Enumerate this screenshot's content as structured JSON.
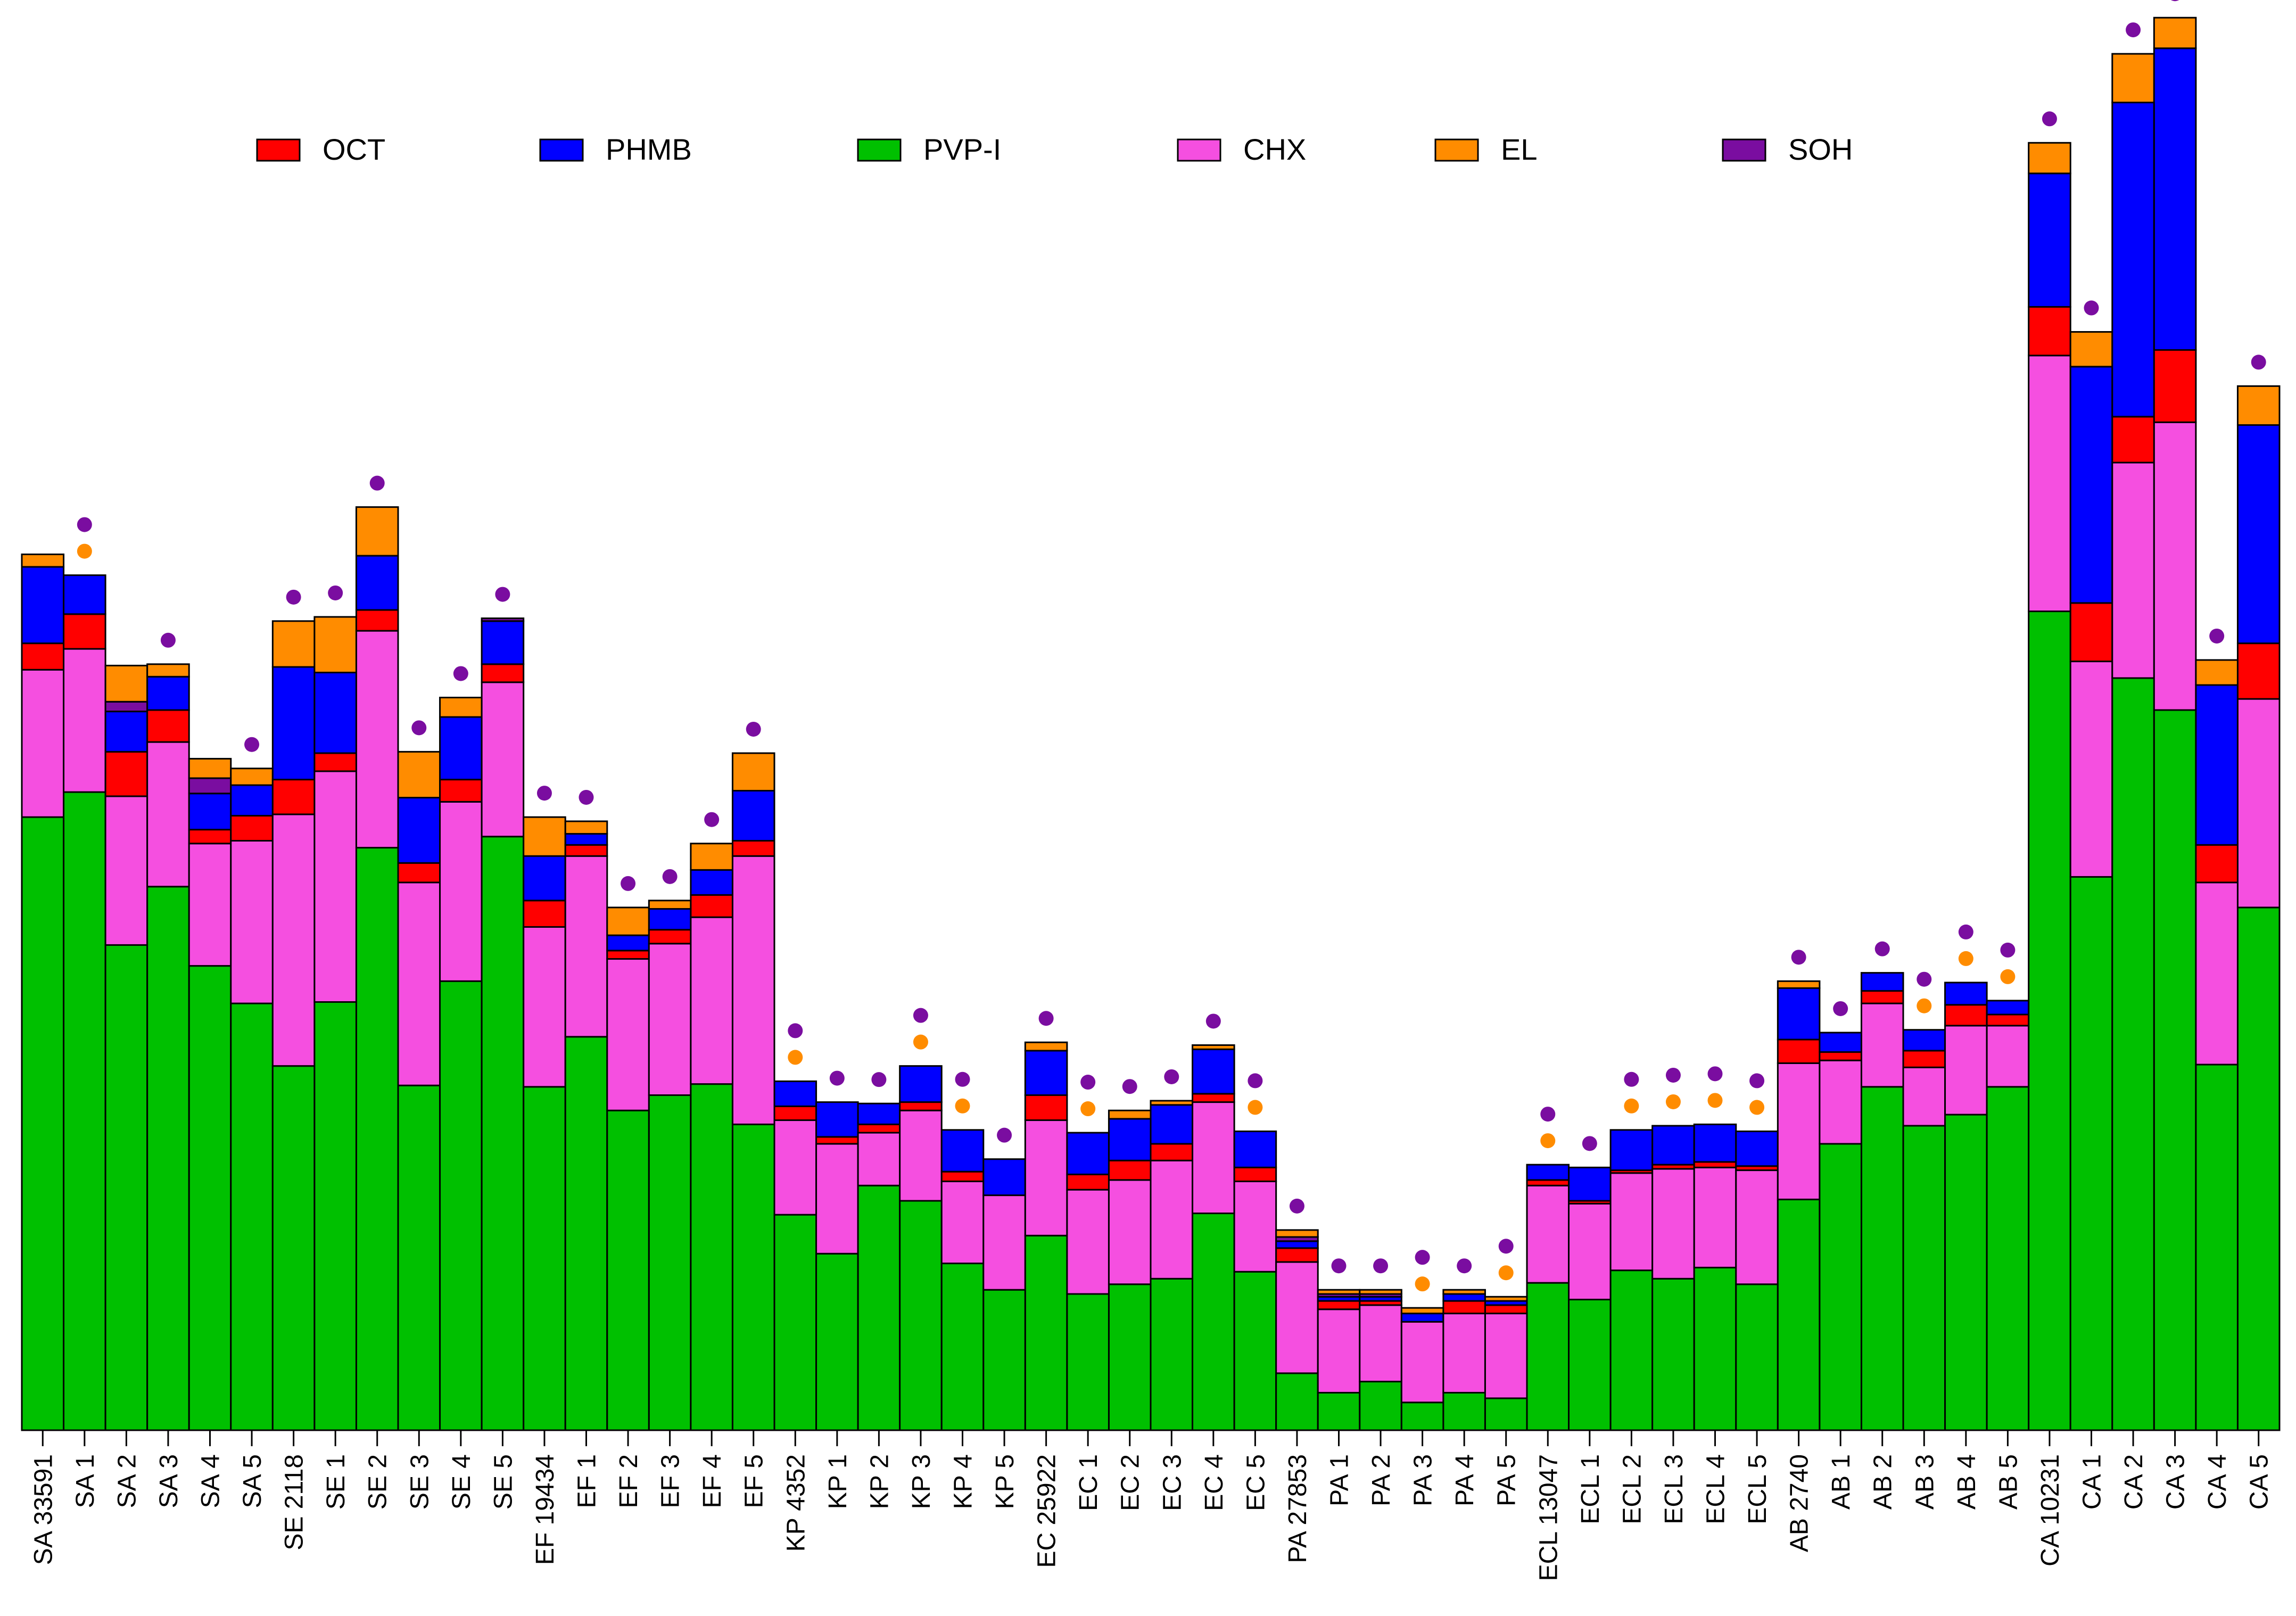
{
  "chart_data": {
    "type": "bar",
    "stacked": true,
    "title": "",
    "xlabel": "",
    "ylabel": "",
    "ylim": [
      0,
      1000
    ],
    "grid": false,
    "legend_position": "top",
    "legend": [
      {
        "key": "OCT",
        "label": "OCT",
        "color": "#ff0000"
      },
      {
        "key": "PHMB",
        "label": "PHMB",
        "color": "#0000ff"
      },
      {
        "key": "PVP-I",
        "label": "PVP-I",
        "color": "#00c000"
      },
      {
        "key": "CHX",
        "label": "CHX",
        "color": "#f54fe0"
      },
      {
        "key": "EL",
        "label": "EL",
        "color": "#ff8c00"
      },
      {
        "key": "SOH",
        "label": "SOH",
        "color": "#7a0da0"
      }
    ],
    "stack_order": [
      "PVP-I",
      "CHX",
      "OCT",
      "PHMB",
      "SOH",
      "EL"
    ],
    "marker_colors": {
      "purple": "#7a0da0",
      "orange": "#ff8c00"
    },
    "categories": [
      "SA 33591",
      "SA 1",
      "SA 2",
      "SA 3",
      "SA 4",
      "SA 5",
      "SE 2118",
      "SE 1",
      "SE 2",
      "SE 3",
      "SE 4",
      "SE 5",
      "EF 19434",
      "EF 1",
      "EF 2",
      "EF 3",
      "EF 4",
      "EF 5",
      "KP 4352",
      "KP 1",
      "KP 2",
      "KP 3",
      "KP 4",
      "KP 5",
      "EC 25922",
      "EC 1",
      "EC 2",
      "EC 3",
      "EC 4",
      "EC 5",
      "PA 27853",
      "PA 1",
      "PA 2",
      "PA 3",
      "PA 4",
      "PA 5",
      "ECL 13047",
      "ECL 1",
      "ECL 2",
      "ECL 3",
      "ECL 4",
      "ECL 5",
      "AB 2740",
      "AB 1",
      "AB 2",
      "AB 3",
      "AB 4",
      "AB 5",
      "CA 10231",
      "CA 1",
      "CA 2",
      "CA 3",
      "CA 4",
      "CA 5"
    ],
    "series": [
      {
        "name": "PVP-I",
        "values": [
          441,
          459,
          349,
          391,
          334,
          307,
          262,
          308,
          419,
          248,
          323,
          427,
          247,
          283,
          230,
          241,
          249,
          220,
          155,
          127,
          176,
          165,
          120,
          101,
          140,
          98,
          105,
          109,
          156,
          114,
          41,
          27,
          35,
          20,
          27,
          23,
          106,
          94,
          115,
          109,
          117,
          105,
          166,
          206,
          247,
          219,
          227,
          247,
          589,
          398,
          541,
          518,
          263,
          376
        ]
      },
      {
        "name": "CHX",
        "values": [
          106,
          103,
          107,
          104,
          88,
          117,
          181,
          166,
          156,
          146,
          129,
          111,
          115,
          130,
          109,
          109,
          120,
          193,
          68,
          79,
          38,
          65,
          59,
          68,
          83,
          75,
          75,
          85,
          80,
          65,
          80,
          60,
          55,
          58,
          57,
          61,
          70,
          69,
          70,
          79,
          72,
          82,
          98,
          60,
          60,
          42,
          64,
          44,
          184,
          155,
          155,
          207,
          131,
          150
        ]
      },
      {
        "name": "OCT",
        "values": [
          19,
          25,
          32,
          23,
          10,
          18,
          25,
          13,
          15,
          14,
          16,
          13,
          19,
          8,
          6,
          10,
          16,
          11,
          10,
          5,
          6,
          6,
          7,
          0,
          18,
          11,
          14,
          12,
          6,
          10,
          10,
          6,
          3,
          0,
          9,
          6,
          4,
          2,
          2,
          3,
          4,
          3,
          17,
          6,
          9,
          12,
          15,
          8,
          35,
          42,
          33,
          52,
          27,
          40
        ]
      },
      {
        "name": "PHMB",
        "values": [
          55,
          28,
          29,
          24,
          26,
          22,
          81,
          58,
          39,
          47,
          45,
          31,
          32,
          8,
          11,
          15,
          18,
          36,
          18,
          25,
          15,
          26,
          30,
          26,
          32,
          30,
          30,
          28,
          32,
          26,
          5,
          3,
          3,
          6,
          5,
          3,
          11,
          24,
          29,
          28,
          27,
          25,
          37,
          14,
          13,
          15,
          16,
          10,
          96,
          170,
          226,
          217,
          115,
          157
        ]
      },
      {
        "name": "SOH",
        "values": [
          0,
          0,
          7,
          0,
          11,
          0,
          0,
          0,
          0,
          0,
          0,
          2,
          0,
          0,
          0,
          0,
          0,
          0,
          0,
          0,
          0,
          0,
          0,
          0,
          0,
          0,
          0,
          0,
          0,
          0,
          3,
          2,
          2,
          0,
          0,
          0,
          0,
          0,
          0,
          0,
          0,
          0,
          0,
          0,
          0,
          0,
          0,
          0,
          0,
          0,
          0,
          0,
          0,
          0
        ]
      },
      {
        "name": "EL",
        "values": [
          9,
          0,
          26,
          9,
          14,
          12,
          33,
          40,
          35,
          33,
          14,
          0,
          28,
          9,
          20,
          6,
          19,
          27,
          0,
          0,
          0,
          0,
          0,
          0,
          6,
          0,
          6,
          3,
          3,
          0,
          5,
          3,
          3,
          4,
          3,
          3,
          0,
          0,
          0,
          0,
          0,
          0,
          5,
          0,
          0,
          0,
          0,
          0,
          22,
          25,
          35,
          22,
          18,
          28
        ]
      }
    ],
    "markers": [
      [
        "none"
      ],
      [
        "purple",
        "orange"
      ],
      [
        "none"
      ],
      [
        "purple"
      ],
      [
        "none"
      ],
      [
        "purple"
      ],
      [
        "purple"
      ],
      [
        "purple"
      ],
      [
        "purple"
      ],
      [
        "purple"
      ],
      [
        "purple"
      ],
      [
        "purple"
      ],
      [
        "purple"
      ],
      [
        "purple"
      ],
      [
        "purple"
      ],
      [
        "purple"
      ],
      [
        "purple"
      ],
      [
        "purple"
      ],
      [
        "purple",
        "orange"
      ],
      [
        "purple"
      ],
      [
        "purple"
      ],
      [
        "purple",
        "orange"
      ],
      [
        "purple",
        "orange"
      ],
      [
        "purple"
      ],
      [
        "purple"
      ],
      [
        "purple",
        "orange"
      ],
      [
        "purple"
      ],
      [
        "purple"
      ],
      [
        "purple"
      ],
      [
        "purple",
        "orange"
      ],
      [
        "purple"
      ],
      [
        "purple"
      ],
      [
        "purple"
      ],
      [
        "purple",
        "orange"
      ],
      [
        "purple"
      ],
      [
        "purple",
        "orange"
      ],
      [
        "purple",
        "orange"
      ],
      [
        "purple"
      ],
      [
        "purple",
        "orange"
      ],
      [
        "purple",
        "orange"
      ],
      [
        "purple",
        "orange"
      ],
      [
        "purple",
        "orange"
      ],
      [
        "purple"
      ],
      [
        "purple"
      ],
      [
        "purple"
      ],
      [
        "purple",
        "orange"
      ],
      [
        "purple",
        "orange"
      ],
      [
        "purple",
        "orange"
      ],
      [
        "purple"
      ],
      [
        "purple"
      ],
      [
        "purple"
      ],
      [
        "purple"
      ],
      [
        "purple"
      ],
      [
        "purple"
      ]
    ]
  }
}
